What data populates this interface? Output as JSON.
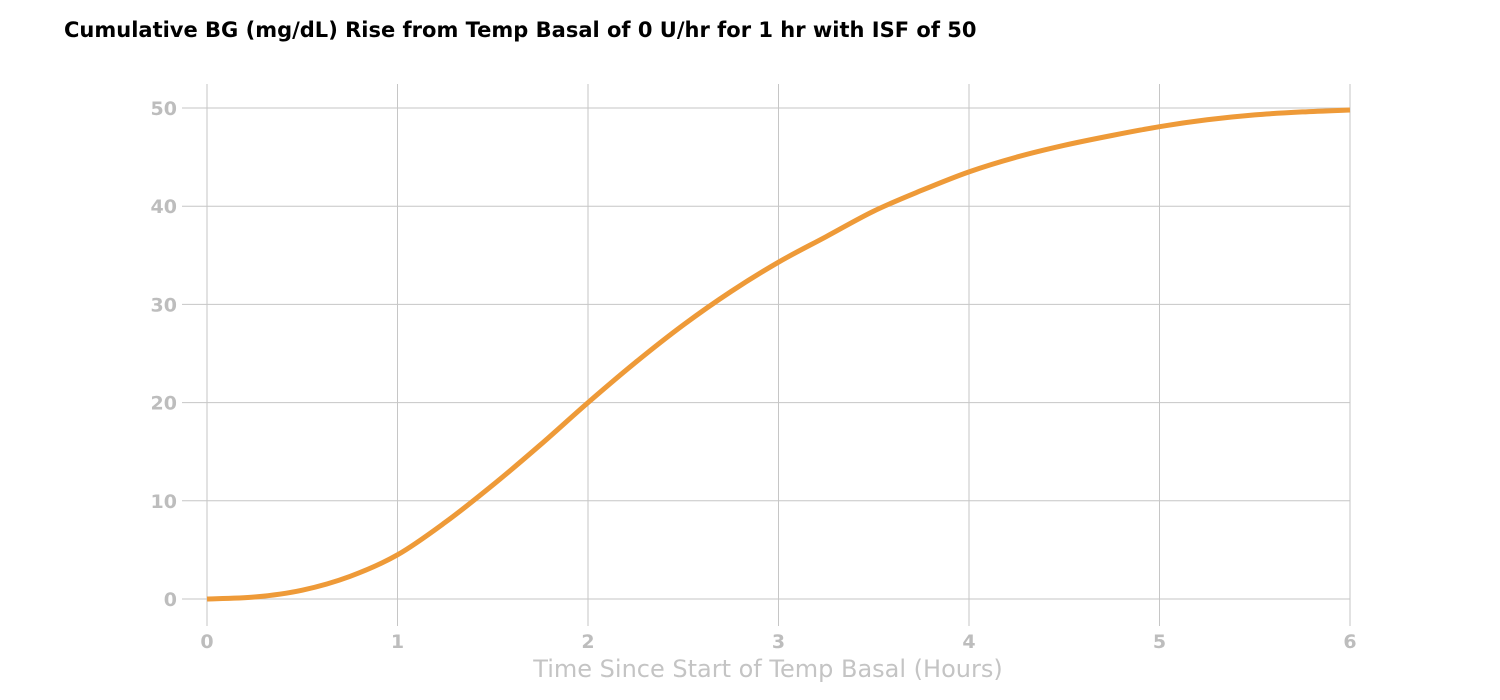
{
  "chart_data": {
    "type": "line",
    "title": "Cumulative BG (mg/dL) Rise from Temp Basal of 0 U/hr for 1 hr with ISF of 50",
    "xlabel": "Time Since Start of Temp Basal (Hours)",
    "ylabel": "",
    "xlim": [
      0,
      6
    ],
    "ylim": [
      0,
      50
    ],
    "xticks": [
      0,
      1,
      2,
      3,
      4,
      5,
      6
    ],
    "yticks": [
      0,
      10,
      20,
      30,
      40,
      50
    ],
    "grid": true,
    "line_color": "#ee9a38",
    "series": [
      {
        "x": [
          0,
          0.25,
          0.5,
          0.75,
          1,
          1.25,
          1.5,
          1.75,
          2,
          2.25,
          2.5,
          2.75,
          3,
          3.25,
          3.5,
          3.75,
          4,
          4.25,
          4.5,
          4.75,
          5,
          5.25,
          5.5,
          5.75,
          6
        ],
        "values": [
          0,
          0.2,
          0.9,
          2.3,
          4.5,
          7.8,
          11.6,
          15.7,
          20.0,
          24.1,
          27.9,
          31.3,
          34.3,
          36.9,
          39.5,
          41.6,
          43.5,
          45.0,
          46.2,
          47.2,
          48.1,
          48.8,
          49.3,
          49.6,
          49.8
        ]
      }
    ]
  }
}
